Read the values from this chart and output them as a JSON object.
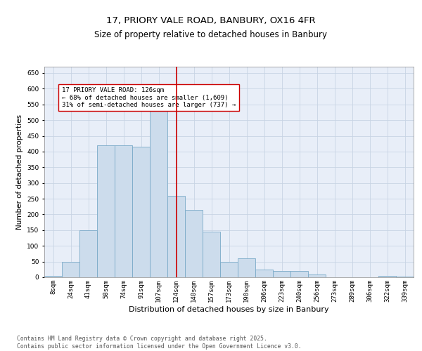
{
  "title": "17, PRIORY VALE ROAD, BANBURY, OX16 4FR",
  "subtitle": "Size of property relative to detached houses in Banbury",
  "xlabel": "Distribution of detached houses by size in Banbury",
  "ylabel": "Number of detached properties",
  "categories": [
    "8sqm",
    "24sqm",
    "41sqm",
    "58sqm",
    "74sqm",
    "91sqm",
    "107sqm",
    "124sqm",
    "140sqm",
    "157sqm",
    "173sqm",
    "190sqm",
    "206sqm",
    "223sqm",
    "240sqm",
    "256sqm",
    "273sqm",
    "289sqm",
    "306sqm",
    "322sqm",
    "339sqm"
  ],
  "values": [
    5,
    50,
    150,
    420,
    420,
    415,
    570,
    260,
    215,
    145,
    50,
    60,
    25,
    20,
    20,
    10,
    0,
    0,
    0,
    5,
    2
  ],
  "bar_color": "#ccdcec",
  "bar_edge_color": "#7aaac8",
  "bar_linewidth": 0.6,
  "vline_x_index": 7,
  "vline_color": "#cc0000",
  "vline_linewidth": 1.2,
  "annotation_text": "17 PRIORY VALE ROAD: 126sqm\n← 68% of detached houses are smaller (1,609)\n31% of semi-detached houses are larger (737) →",
  "annotation_box_color": "#ffffff",
  "annotation_box_edgecolor": "#cc0000",
  "annotation_fontsize": 6.5,
  "ylim": [
    0,
    670
  ],
  "yticks": [
    0,
    50,
    100,
    150,
    200,
    250,
    300,
    350,
    400,
    450,
    500,
    550,
    600,
    650
  ],
  "grid_color": "#c8d4e4",
  "background_color": "#e8eef8",
  "footer_text": "Contains HM Land Registry data © Crown copyright and database right 2025.\nContains public sector information licensed under the Open Government Licence v3.0.",
  "title_fontsize": 9.5,
  "subtitle_fontsize": 8.5,
  "xlabel_fontsize": 8,
  "ylabel_fontsize": 7.5,
  "tick_fontsize": 6.5,
  "footer_fontsize": 5.8
}
